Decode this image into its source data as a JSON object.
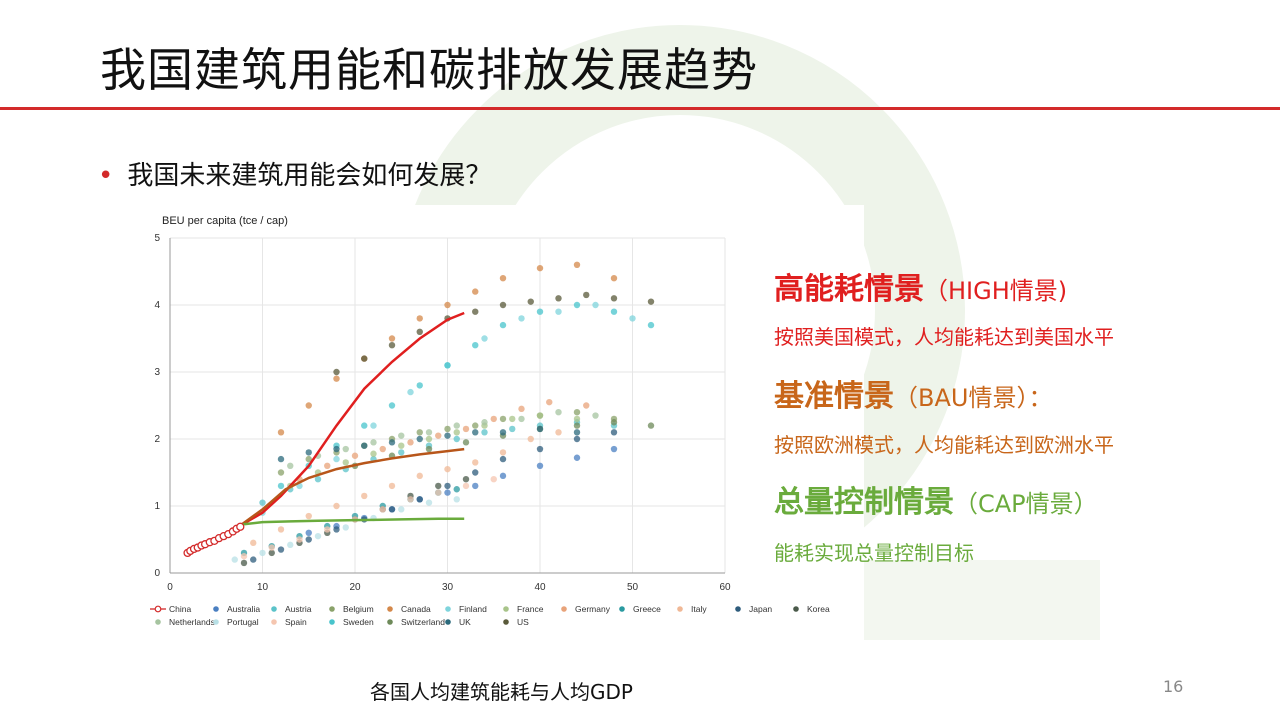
{
  "slide": {
    "title": "我国建筑用能和碳排放发展趋势",
    "bullet": "我国未来建筑用能会如何发展？",
    "caption": "各国人均建筑能耗与人均GDP",
    "page_number": "16",
    "accent_color": "#d32a2a"
  },
  "scenarios": [
    {
      "title": "高能耗情景",
      "suffix": "（HIGH情景)",
      "desc": "按照美国模式，人均能耗达到美国水平",
      "color": "#e01f1f"
    },
    {
      "title": "基准情景",
      "suffix": "（BAU情景）：",
      "desc": "按照欧洲模式，人均能耗达到欧洲水平",
      "color": "#c8661a"
    },
    {
      "title": "总量控制情景",
      "suffix": "（CAP情景）",
      "desc": "能耗实现总量控制目标",
      "color": "#6aab3c"
    }
  ],
  "chart_data": {
    "type": "scatter",
    "ylabel": "BEU per capita (tce / cap)",
    "xlabel": "",
    "xlim": [
      0,
      60
    ],
    "ylim": [
      0,
      5
    ],
    "x_ticks": [
      0,
      10,
      20,
      30,
      40,
      50,
      60
    ],
    "y_ticks": [
      0,
      1,
      2,
      3,
      4,
      5
    ],
    "grid": true,
    "legend_position": "bottom",
    "china": {
      "name": "China",
      "color": "#d32a2a",
      "points": [
        [
          1.9,
          0.3
        ],
        [
          2.2,
          0.33
        ],
        [
          2.6,
          0.36
        ],
        [
          3.0,
          0.38
        ],
        [
          3.4,
          0.41
        ],
        [
          3.8,
          0.43
        ],
        [
          4.3,
          0.46
        ],
        [
          4.8,
          0.48
        ],
        [
          5.3,
          0.52
        ],
        [
          5.8,
          0.55
        ],
        [
          6.3,
          0.58
        ],
        [
          6.8,
          0.62
        ],
        [
          7.2,
          0.66
        ],
        [
          7.6,
          0.69
        ]
      ]
    },
    "projections": [
      {
        "key": "HIGH",
        "color": "#e01f1f",
        "points": [
          [
            7.5,
            0.7
          ],
          [
            10,
            0.9
          ],
          [
            12,
            1.15
          ],
          [
            15,
            1.6
          ],
          [
            18,
            2.2
          ],
          [
            21,
            2.75
          ],
          [
            24,
            3.15
          ],
          [
            27,
            3.5
          ],
          [
            30,
            3.78
          ],
          [
            31.8,
            3.88
          ]
        ]
      },
      {
        "key": "BAU",
        "color": "#b8561a",
        "points": [
          [
            7.5,
            0.7
          ],
          [
            10,
            0.95
          ],
          [
            12.5,
            1.25
          ],
          [
            15,
            1.42
          ],
          [
            18,
            1.55
          ],
          [
            21,
            1.64
          ],
          [
            24,
            1.71
          ],
          [
            27,
            1.77
          ],
          [
            30,
            1.82
          ],
          [
            31.8,
            1.85
          ]
        ]
      },
      {
        "key": "CAP",
        "color": "#6aab3c",
        "points": [
          [
            7.5,
            0.72
          ],
          [
            10,
            0.76
          ],
          [
            13,
            0.77
          ],
          [
            16,
            0.78
          ],
          [
            20,
            0.79
          ],
          [
            25,
            0.8
          ],
          [
            29,
            0.81
          ],
          [
            31.8,
            0.81
          ]
        ]
      }
    ],
    "series": [
      {
        "name": "Australia",
        "color": "#4a7fc1",
        "points": [
          [
            15,
            0.6
          ],
          [
            18,
            0.7
          ],
          [
            21,
            0.82
          ],
          [
            24,
            0.95
          ],
          [
            27,
            1.1
          ],
          [
            30,
            1.2
          ],
          [
            33,
            1.3
          ],
          [
            36,
            1.45
          ],
          [
            40,
            1.6
          ],
          [
            44,
            1.72
          ],
          [
            48,
            1.85
          ]
        ]
      },
      {
        "name": "Austria",
        "color": "#5bc3c9",
        "points": [
          [
            10,
            1.05
          ],
          [
            13,
            1.25
          ],
          [
            16,
            1.4
          ],
          [
            19,
            1.55
          ],
          [
            22,
            1.7
          ],
          [
            25,
            1.8
          ],
          [
            28,
            1.9
          ],
          [
            31,
            2.0
          ],
          [
            34,
            2.1
          ],
          [
            37,
            2.15
          ],
          [
            40,
            2.2
          ],
          [
            44,
            2.25
          ],
          [
            48,
            2.2
          ]
        ]
      },
      {
        "name": "Belgium",
        "color": "#8aa26a",
        "points": [
          [
            12,
            1.5
          ],
          [
            15,
            1.7
          ],
          [
            18,
            1.8
          ],
          [
            21,
            1.9
          ],
          [
            24,
            2.0
          ],
          [
            27,
            2.1
          ],
          [
            30,
            2.15
          ],
          [
            33,
            2.2
          ],
          [
            36,
            2.3
          ],
          [
            40,
            2.35
          ],
          [
            44,
            2.4
          ],
          [
            48,
            2.3
          ]
        ]
      },
      {
        "name": "Canada",
        "color": "#d4884a",
        "points": [
          [
            12,
            2.1
          ],
          [
            15,
            2.5
          ],
          [
            18,
            2.9
          ],
          [
            21,
            3.2
          ],
          [
            24,
            3.5
          ],
          [
            27,
            3.8
          ],
          [
            30,
            4.0
          ],
          [
            33,
            4.2
          ],
          [
            36,
            4.4
          ],
          [
            40,
            4.55
          ],
          [
            44,
            4.6
          ],
          [
            48,
            4.4
          ]
        ]
      },
      {
        "name": "Finland",
        "color": "#7fd4dc",
        "points": [
          [
            10,
            0.9
          ],
          [
            14,
            1.3
          ],
          [
            18,
            1.7
          ],
          [
            22,
            2.2
          ],
          [
            26,
            2.7
          ],
          [
            30,
            3.1
          ],
          [
            34,
            3.5
          ],
          [
            38,
            3.8
          ],
          [
            42,
            3.9
          ],
          [
            46,
            4.0
          ],
          [
            50,
            3.8
          ]
        ]
      },
      {
        "name": "France",
        "color": "#a8c48a",
        "points": [
          [
            13,
            1.3
          ],
          [
            16,
            1.5
          ],
          [
            19,
            1.65
          ],
          [
            22,
            1.78
          ],
          [
            25,
            1.9
          ],
          [
            28,
            2.0
          ],
          [
            31,
            2.1
          ],
          [
            34,
            2.2
          ],
          [
            37,
            2.3
          ],
          [
            40,
            2.35
          ],
          [
            44,
            2.3
          ]
        ]
      },
      {
        "name": "Germany",
        "color": "#e8a37a",
        "points": [
          [
            14,
            1.4
          ],
          [
            17,
            1.6
          ],
          [
            20,
            1.75
          ],
          [
            23,
            1.85
          ],
          [
            26,
            1.95
          ],
          [
            29,
            2.05
          ],
          [
            32,
            2.15
          ],
          [
            35,
            2.3
          ],
          [
            38,
            2.45
          ],
          [
            41,
            2.55
          ],
          [
            45,
            2.5
          ]
        ]
      },
      {
        "name": "Greece",
        "color": "#2a9aa0",
        "points": [
          [
            8,
            0.3
          ],
          [
            11,
            0.4
          ],
          [
            14,
            0.55
          ],
          [
            17,
            0.7
          ],
          [
            20,
            0.85
          ],
          [
            23,
            1.0
          ],
          [
            26,
            1.1
          ],
          [
            29,
            1.2
          ],
          [
            31,
            1.25
          ]
        ]
      },
      {
        "name": "Italy",
        "color": "#f0b896",
        "points": [
          [
            9,
            0.45
          ],
          [
            12,
            0.65
          ],
          [
            15,
            0.85
          ],
          [
            18,
            1.0
          ],
          [
            21,
            1.15
          ],
          [
            24,
            1.3
          ],
          [
            27,
            1.45
          ],
          [
            30,
            1.55
          ],
          [
            33,
            1.65
          ],
          [
            36,
            1.8
          ],
          [
            39,
            2.0
          ],
          [
            42,
            2.1
          ]
        ]
      },
      {
        "name": "Japan",
        "color": "#2e5c7c",
        "points": [
          [
            9,
            0.2
          ],
          [
            12,
            0.35
          ],
          [
            15,
            0.5
          ],
          [
            18,
            0.65
          ],
          [
            21,
            0.8
          ],
          [
            24,
            0.95
          ],
          [
            27,
            1.1
          ],
          [
            30,
            1.3
          ],
          [
            33,
            1.5
          ],
          [
            36,
            1.7
          ],
          [
            40,
            1.85
          ],
          [
            44,
            2.0
          ],
          [
            48,
            2.1
          ]
        ]
      },
      {
        "name": "Korea",
        "color": "#4a5a4a",
        "points": [
          [
            8,
            0.15
          ],
          [
            11,
            0.3
          ],
          [
            14,
            0.45
          ],
          [
            17,
            0.6
          ],
          [
            20,
            0.8
          ],
          [
            23,
            0.95
          ],
          [
            26,
            1.15
          ],
          [
            29,
            1.3
          ],
          [
            32,
            1.4
          ]
        ]
      },
      {
        "name": "Netherlands",
        "color": "#a6c4a0",
        "points": [
          [
            13,
            1.6
          ],
          [
            16,
            1.75
          ],
          [
            19,
            1.85
          ],
          [
            22,
            1.95
          ],
          [
            25,
            2.05
          ],
          [
            28,
            2.1
          ],
          [
            31,
            2.2
          ],
          [
            34,
            2.25
          ],
          [
            38,
            2.3
          ],
          [
            42,
            2.4
          ],
          [
            46,
            2.35
          ]
        ]
      },
      {
        "name": "Portugal",
        "color": "#b8e0e6",
        "points": [
          [
            7,
            0.2
          ],
          [
            10,
            0.3
          ],
          [
            13,
            0.42
          ],
          [
            16,
            0.55
          ],
          [
            19,
            0.68
          ],
          [
            22,
            0.82
          ],
          [
            25,
            0.95
          ],
          [
            28,
            1.05
          ],
          [
            31,
            1.1
          ]
        ]
      },
      {
        "name": "Spain",
        "color": "#f5c6b0",
        "points": [
          [
            8,
            0.25
          ],
          [
            11,
            0.38
          ],
          [
            14,
            0.5
          ],
          [
            17,
            0.65
          ],
          [
            20,
            0.8
          ],
          [
            23,
            0.95
          ],
          [
            26,
            1.1
          ],
          [
            29,
            1.2
          ],
          [
            32,
            1.3
          ],
          [
            35,
            1.4
          ]
        ]
      },
      {
        "name": "Sweden",
        "color": "#48c4cc",
        "points": [
          [
            12,
            1.3
          ],
          [
            15,
            1.6
          ],
          [
            18,
            1.9
          ],
          [
            21,
            2.2
          ],
          [
            24,
            2.5
          ],
          [
            27,
            2.8
          ],
          [
            30,
            3.1
          ],
          [
            33,
            3.4
          ],
          [
            36,
            3.7
          ],
          [
            40,
            3.9
          ],
          [
            44,
            4.0
          ],
          [
            48,
            3.9
          ],
          [
            52,
            3.7
          ]
        ]
      },
      {
        "name": "Switzerland",
        "color": "#6e8a5a",
        "points": [
          [
            20,
            1.6
          ],
          [
            24,
            1.75
          ],
          [
            28,
            1.85
          ],
          [
            32,
            1.95
          ],
          [
            36,
            2.05
          ],
          [
            40,
            2.15
          ],
          [
            44,
            2.2
          ],
          [
            48,
            2.25
          ],
          [
            52,
            2.2
          ]
        ]
      },
      {
        "name": "UK",
        "color": "#2b6a7c",
        "points": [
          [
            12,
            1.7
          ],
          [
            15,
            1.8
          ],
          [
            18,
            1.85
          ],
          [
            21,
            1.9
          ],
          [
            24,
            1.95
          ],
          [
            27,
            2.0
          ],
          [
            30,
            2.05
          ],
          [
            33,
            2.1
          ],
          [
            36,
            2.1
          ],
          [
            40,
            2.15
          ],
          [
            44,
            2.1
          ]
        ]
      },
      {
        "name": "US",
        "color": "#5a5a3a",
        "points": [
          [
            18,
            3.0
          ],
          [
            21,
            3.2
          ],
          [
            24,
            3.4
          ],
          [
            27,
            3.6
          ],
          [
            30,
            3.8
          ],
          [
            33,
            3.9
          ],
          [
            36,
            4.0
          ],
          [
            39,
            4.05
          ],
          [
            42,
            4.1
          ],
          [
            45,
            4.15
          ],
          [
            48,
            4.1
          ],
          [
            52,
            4.05
          ]
        ]
      }
    ]
  }
}
